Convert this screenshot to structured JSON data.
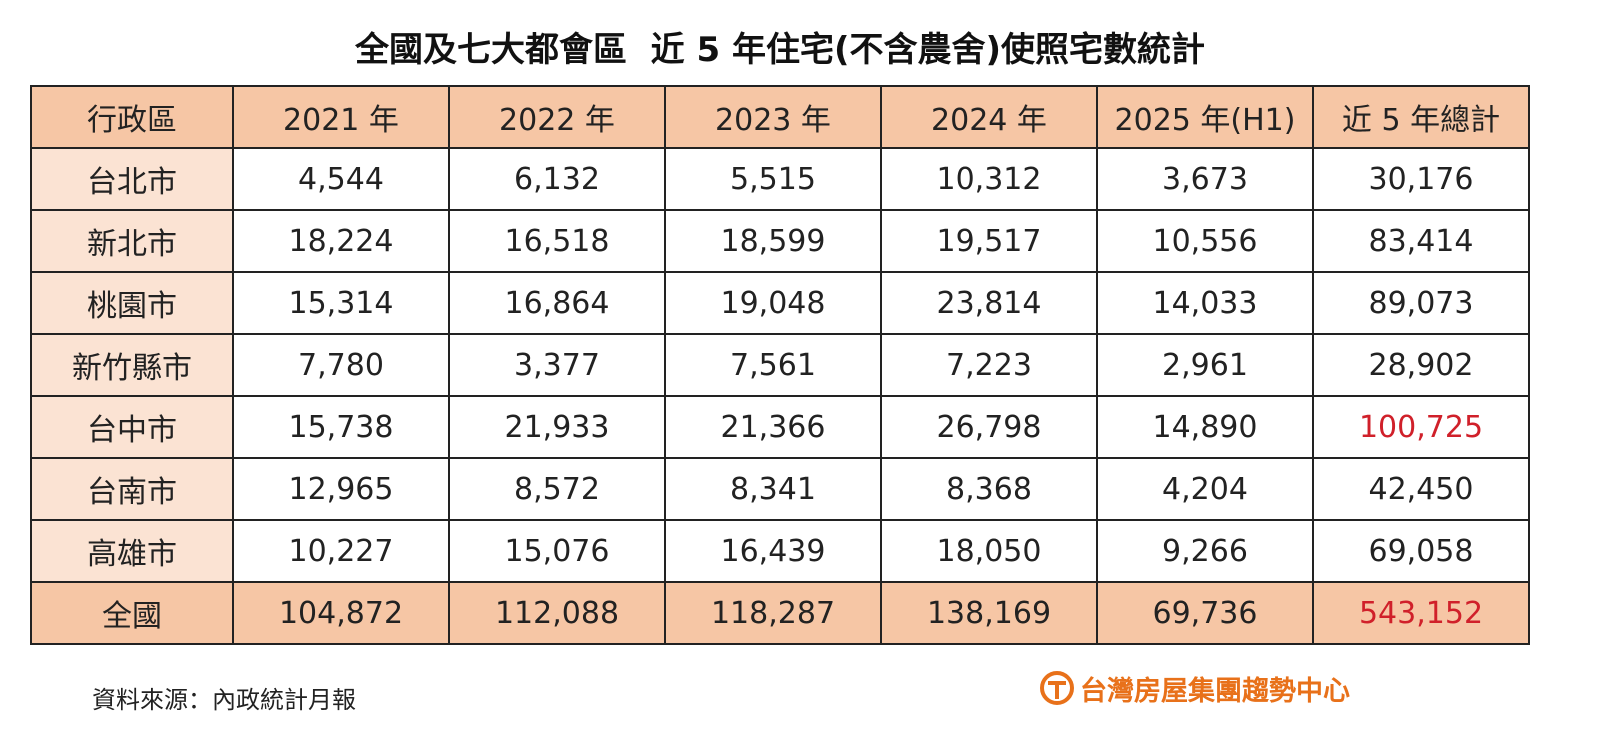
{
  "title": "全國及七大都會區  近 5 年住宅(不含農舍)使照宅數統計",
  "table": {
    "header": [
      "行政區",
      "2021 年",
      "2022 年",
      "2023 年",
      "2024 年",
      "2025 年(H1)",
      "近 5 年總計"
    ],
    "rows": [
      [
        "台北市",
        "4,544",
        "6,132",
        "5,515",
        "10,312",
        "3,673",
        "30,176"
      ],
      [
        "新北市",
        "18,224",
        "16,518",
        "18,599",
        "19,517",
        "10,556",
        "83,414"
      ],
      [
        "桃園市",
        "15,314",
        "16,864",
        "19,048",
        "23,814",
        "14,033",
        "89,073"
      ],
      [
        "新竹縣市",
        "7,780",
        "3,377",
        "7,561",
        "7,223",
        "2,961",
        "28,902"
      ],
      [
        "台中市",
        "15,738",
        "21,933",
        "21,366",
        "26,798",
        "14,890",
        "100,725"
      ],
      [
        "台南市",
        "12,965",
        "8,572",
        "8,341",
        "8,368",
        "4,204",
        "42,450"
      ],
      [
        "高雄市",
        "10,227",
        "15,076",
        "16,439",
        "18,050",
        "9,266",
        "69,058"
      ],
      [
        "全國",
        "104,872",
        "112,088",
        "118,287",
        "138,169",
        "69,736",
        "543,152"
      ]
    ]
  },
  "source": "資料來源：內政統計月報",
  "logo": "台灣房屋集團趨勢中心"
}
